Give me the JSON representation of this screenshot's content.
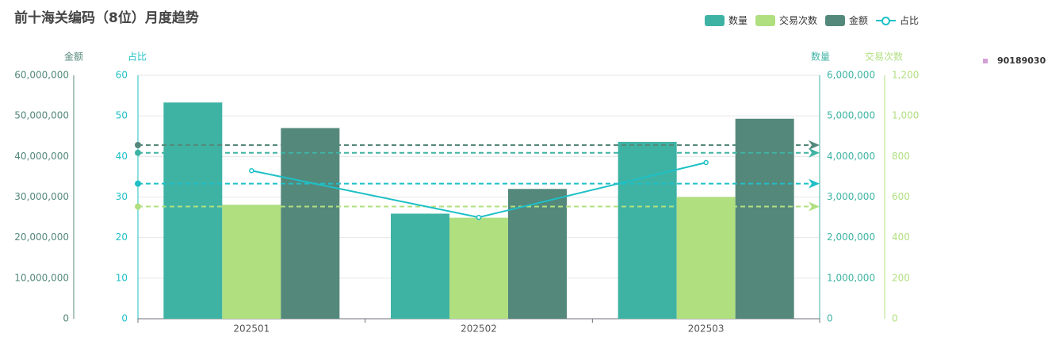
{
  "title": "前十海关编码（8位）月度趋势",
  "legend": [
    {
      "label": "数量",
      "color": "#3eb3a4",
      "kind": "bar"
    },
    {
      "label": "交易次数",
      "color": "#b0df80",
      "kind": "bar"
    },
    {
      "label": "金额",
      "color": "#54887b",
      "kind": "bar"
    },
    {
      "label": "占比",
      "color": "#1ec0c6",
      "kind": "line"
    }
  ],
  "side_legend": {
    "label": "90189030",
    "color": "#d39ed6"
  },
  "chart_data": {
    "type": "bar",
    "categories": [
      "202501",
      "202502",
      "202503"
    ],
    "axes": {
      "amount": {
        "name": "金额",
        "min": 0,
        "max": 60000000,
        "ticks": [
          "0",
          "10,000,000",
          "20,000,000",
          "30,000,000",
          "40,000,000",
          "50,000,000",
          "60,000,000"
        ],
        "color": "#54887b"
      },
      "share": {
        "name": "占比",
        "min": 0,
        "max": 60,
        "ticks": [
          "0",
          "10",
          "20",
          "30",
          "40",
          "50",
          "60"
        ],
        "color": "#1ec0c6"
      },
      "quantity": {
        "name": "数量",
        "min": 0,
        "max": 6000000,
        "ticks": [
          "0",
          "1,000,000",
          "2,000,000",
          "3,000,000",
          "4,000,000",
          "5,000,000",
          "6,000,000"
        ],
        "color": "#3eb3a4"
      },
      "trades": {
        "name": "交易次数",
        "min": 0,
        "max": 1200,
        "ticks": [
          "0",
          "200",
          "400",
          "600",
          "800",
          "1,000",
          "1,200"
        ],
        "color": "#b0df80"
      }
    },
    "series": [
      {
        "name": "数量",
        "axis": "quantity",
        "type": "bar",
        "color": "#3eb3a4",
        "values": [
          5330000,
          2590000,
          4360000
        ],
        "mean": 4090000
      },
      {
        "name": "交易次数",
        "axis": "trades",
        "type": "bar",
        "color": "#b0df80",
        "values": [
          562,
          498,
          600
        ],
        "mean": 553
      },
      {
        "name": "金额",
        "axis": "amount",
        "type": "bar",
        "color": "#54887b",
        "values": [
          47000000,
          32000000,
          49300000
        ],
        "mean": 42800000
      },
      {
        "name": "占比",
        "axis": "share",
        "type": "line",
        "color": "#1ec0c6",
        "values": [
          36.5,
          25.0,
          38.5
        ],
        "mean": 33.3
      }
    ],
    "grid": true
  }
}
